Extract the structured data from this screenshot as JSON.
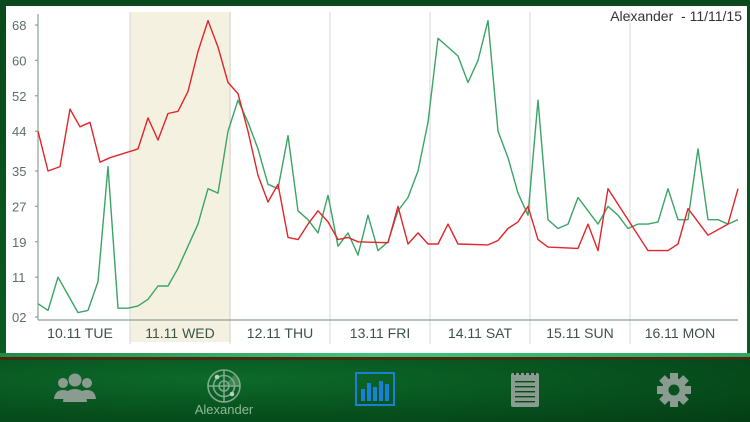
{
  "header": {
    "title": "Alexander  - 11/11/15"
  },
  "colors": {
    "series_red": "#e0262a",
    "series_green": "#3aa564",
    "highlight_band": "#f5f1e1",
    "tab_active": "#1a7fd6",
    "tab_inactive": "#8a9c90"
  },
  "tabbar": {
    "items": [
      {
        "name": "contacts",
        "icon": "group-icon",
        "label": ""
      },
      {
        "name": "radar",
        "icon": "radar-icon",
        "label": "Alexander"
      },
      {
        "name": "chart",
        "icon": "bar-chart-icon",
        "label": "",
        "active": true
      },
      {
        "name": "notes",
        "icon": "notepad-icon",
        "label": ""
      },
      {
        "name": "settings",
        "icon": "gear-icon",
        "label": ""
      }
    ]
  },
  "chart_data": {
    "type": "line",
    "title": "Alexander  - 11/11/15",
    "xlabel": "",
    "ylabel": "",
    "ylim": [
      2,
      69
    ],
    "yticks": [
      "68",
      "60",
      "52",
      "44",
      "35",
      "27",
      "19",
      "11",
      "02"
    ],
    "ytick_values": [
      68,
      60,
      52,
      44,
      35,
      27,
      19,
      11,
      2
    ],
    "categories": [
      "10.11 TUE",
      "11.11 WED",
      "12.11 THU",
      "13.11 FRI",
      "14.11 SAT",
      "15.11 SUN",
      "16.11 MON"
    ],
    "highlighted_category": "11.11 WED",
    "grid": {
      "vertical_day_separators": true,
      "horizontal": false
    },
    "legend": "none",
    "x_range_days": [
      0,
      7
    ],
    "series": [
      {
        "name": "red",
        "color": "#e0262a",
        "x": [
          0.0,
          0.1,
          0.22,
          0.32,
          0.42,
          0.52,
          0.62,
          0.72,
          0.86,
          1.0,
          1.1,
          1.2,
          1.3,
          1.4,
          1.5,
          1.6,
          1.7,
          1.8,
          1.9,
          2.0,
          2.1,
          2.2,
          2.3,
          2.4,
          2.5,
          2.6,
          2.7,
          2.8,
          2.9,
          3.0,
          3.1,
          3.2,
          3.5,
          3.6,
          3.7,
          3.8,
          3.9,
          4.0,
          4.1,
          4.2,
          4.5,
          4.6,
          4.7,
          4.8,
          4.9,
          5.0,
          5.1,
          5.4,
          5.5,
          5.6,
          5.7,
          6.1,
          6.2,
          6.3,
          6.4,
          6.5,
          6.7,
          6.9,
          7.0
        ],
        "values": [
          44,
          35,
          36,
          49,
          45,
          46,
          37,
          38,
          39,
          40,
          47,
          42,
          48,
          48.5,
          53,
          62,
          69,
          63,
          55,
          52.5,
          44,
          34,
          28,
          32,
          20,
          19.5,
          23,
          26,
          23.5,
          19.5,
          20,
          19,
          18.8,
          27,
          18.5,
          21,
          18.5,
          18.5,
          23,
          18.5,
          18.3,
          19.3,
          22,
          23.5,
          27,
          19.5,
          17.8,
          17.5,
          23,
          17,
          31,
          17,
          17,
          17,
          18.5,
          26.5,
          20.5,
          23,
          31
        ]
      },
      {
        "name": "green",
        "color": "#3aa564",
        "x": [
          0.0,
          0.1,
          0.2,
          0.3,
          0.4,
          0.5,
          0.6,
          0.7,
          0.8,
          0.9,
          1.0,
          1.1,
          1.2,
          1.3,
          1.4,
          1.5,
          1.6,
          1.7,
          1.8,
          1.9,
          2.0,
          2.1,
          2.2,
          2.3,
          2.4,
          2.5,
          2.6,
          2.7,
          2.8,
          2.9,
          3.0,
          3.1,
          3.2,
          3.3,
          3.4,
          3.5,
          3.6,
          3.7,
          3.8,
          3.9,
          4.0,
          4.1,
          4.2,
          4.3,
          4.4,
          4.5,
          4.6,
          4.7,
          4.8,
          4.9,
          5.0,
          5.1,
          5.2,
          5.3,
          5.4,
          5.5,
          5.6,
          5.7,
          5.8,
          5.9,
          6.0,
          6.1,
          6.2,
          6.3,
          6.4,
          6.5,
          6.6,
          6.7,
          6.8,
          6.9,
          7.0
        ],
        "values": [
          5,
          3.5,
          11,
          7,
          3,
          3.5,
          10,
          36,
          4,
          4,
          4.5,
          6,
          9,
          9,
          13,
          18,
          23,
          31,
          30,
          44,
          51,
          46,
          40,
          32,
          31,
          43,
          26,
          24,
          21,
          29.5,
          18,
          21,
          16,
          25,
          17,
          19,
          26,
          29,
          35,
          46,
          65,
          63,
          61,
          55,
          60,
          69,
          44,
          38,
          30,
          25,
          51,
          24,
          22,
          23,
          29,
          26,
          23,
          27,
          25,
          22,
          23,
          23,
          23.5,
          31,
          24,
          24,
          40,
          24,
          24,
          23,
          24
        ]
      }
    ]
  }
}
